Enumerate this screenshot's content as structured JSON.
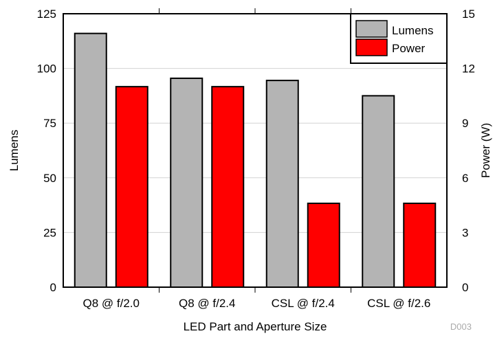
{
  "chart_data": {
    "type": "bar",
    "categories": [
      "Q8 @ f/2.0",
      "Q8 @ f/2.4",
      "CSL @ f/2.4",
      "CSL @ f/2.6"
    ],
    "series": [
      {
        "name": "Lumens",
        "axis": "left",
        "color": "#b4b4b4",
        "values": [
          116,
          95.5,
          94.5,
          87.5
        ]
      },
      {
        "name": "Power",
        "axis": "right",
        "color": "#ff0000",
        "values": [
          11.0,
          11.0,
          4.6,
          4.6
        ]
      }
    ],
    "xlabel": "LED Part and Aperture Size",
    "ylabel": "Lumens",
    "y2label": "Power (W)",
    "ylim": [
      0,
      125
    ],
    "y2lim": [
      0,
      15
    ],
    "yticks": [
      0,
      25,
      50,
      75,
      100,
      125
    ],
    "y2ticks": [
      0,
      3,
      6,
      9,
      12,
      15
    ],
    "grid": true,
    "legend_position": "top-right",
    "figure_id": "D003"
  }
}
